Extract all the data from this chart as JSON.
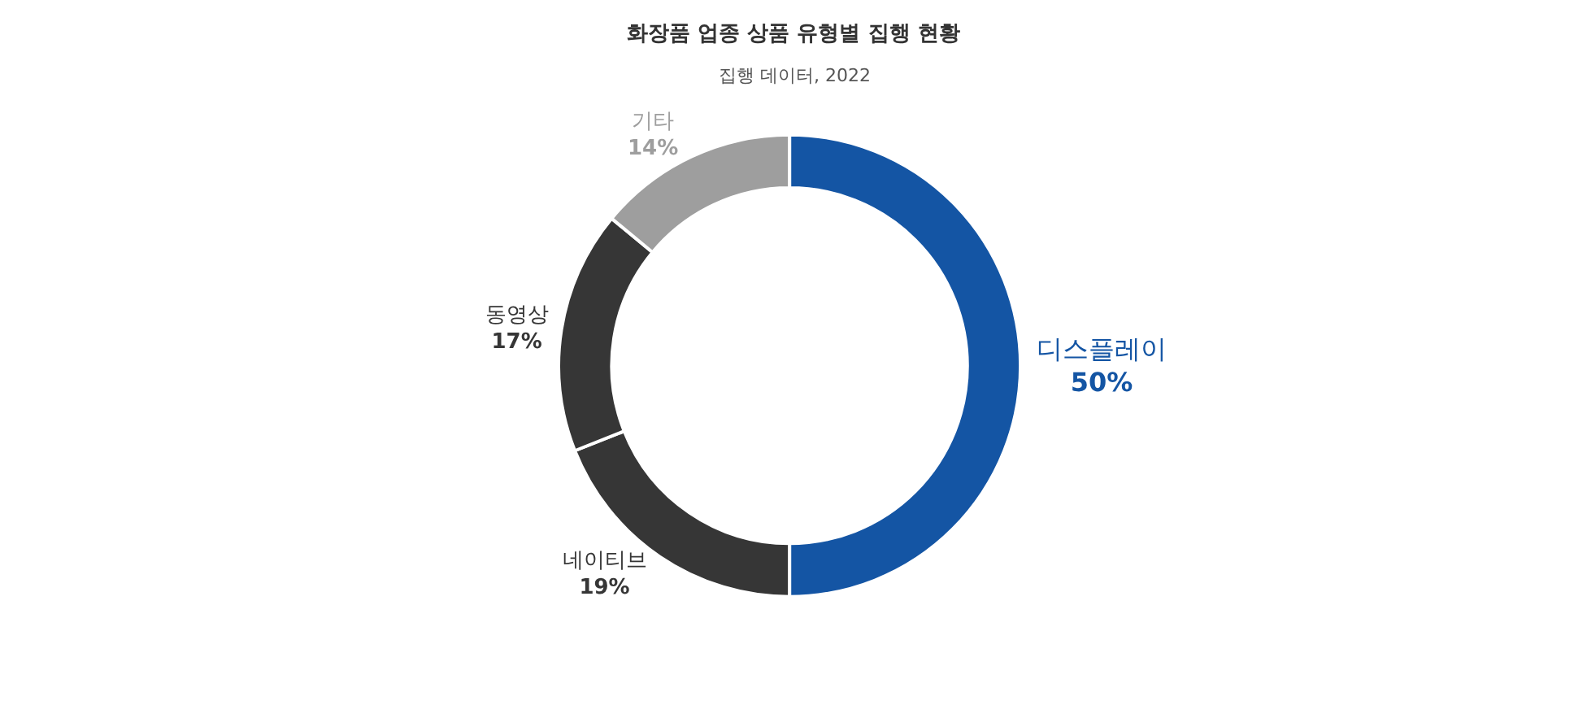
{
  "chart_data": {
    "type": "donut",
    "title": "화장품 업종 상품 유형별 집행 현황",
    "subtitle": "집행 데이터, 2022",
    "categories": [
      "디스플레이",
      "네이티브",
      "동영상",
      "기타"
    ],
    "values": [
      50,
      19,
      17,
      14
    ],
    "value_labels": [
      "50%",
      "19%",
      "17%",
      "14%"
    ],
    "colors": [
      "#1455a4",
      "#363636",
      "#363636",
      "#9e9e9e"
    ],
    "legend": false
  }
}
